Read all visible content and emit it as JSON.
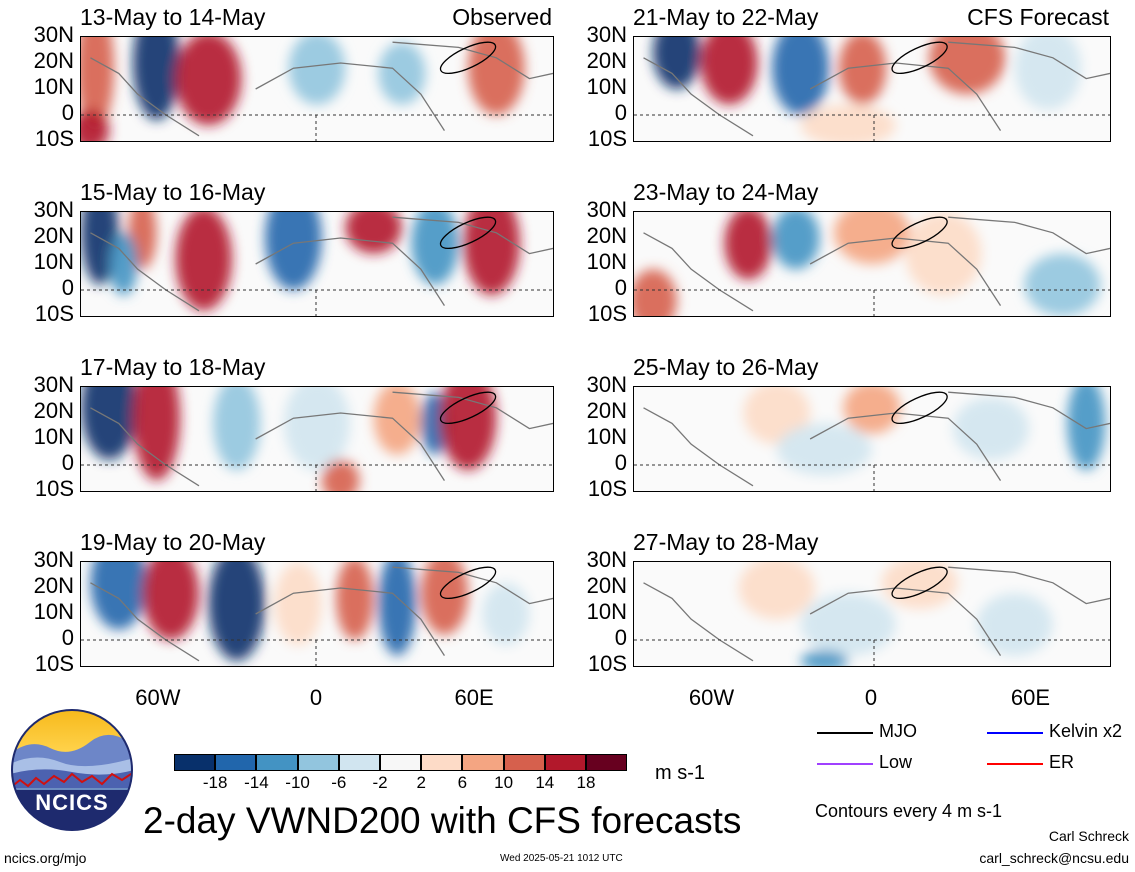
{
  "panels": [
    {
      "title": "13-May to 14-May",
      "corner": "Observed"
    },
    {
      "title": "15-May to 16-May",
      "corner": ""
    },
    {
      "title": "17-May to 18-May",
      "corner": ""
    },
    {
      "title": "19-May to 20-May",
      "corner": ""
    },
    {
      "title": "21-May to 22-May",
      "corner": "CFS Forecast"
    },
    {
      "title": "23-May to 24-May",
      "corner": ""
    },
    {
      "title": "25-May to 26-May",
      "corner": ""
    },
    {
      "title": "27-May to 28-May",
      "corner": ""
    }
  ],
  "lat_labels": [
    "30N",
    "20N",
    "10N",
    "0",
    "10S"
  ],
  "lon_labels": [
    "60W",
    "0",
    "60E"
  ],
  "colorbar": {
    "colors": [
      "#08306b",
      "#2166ac",
      "#4393c3",
      "#92c5de",
      "#d1e5f0",
      "#f7f7f7",
      "#fddbc7",
      "#f4a582",
      "#d6604d",
      "#b2182b",
      "#67001f"
    ],
    "ticks": [
      "-18",
      "-14",
      "-10",
      "-6",
      "-2",
      "2",
      "6",
      "10",
      "14",
      "18"
    ],
    "units": "m s-1"
  },
  "legend": [
    {
      "label": "MJO",
      "color": "#000000"
    },
    {
      "label": "Kelvin x2",
      "color": "#0000ff"
    },
    {
      "label": "Low",
      "color": "#a040ff"
    },
    {
      "label": "ER",
      "color": "#ff0000"
    }
  ],
  "contour_note": "Contours every 4 m s-1",
  "main_title": "2-day VWND200 with CFS forecasts",
  "logo_text": "NCICS",
  "footer": {
    "left": "ncics.org/mjo",
    "center": "Wed 2025-05-21 1012 UTC",
    "author": "Carl Schreck",
    "email": "carl_schreck@ncsu.edu"
  }
}
